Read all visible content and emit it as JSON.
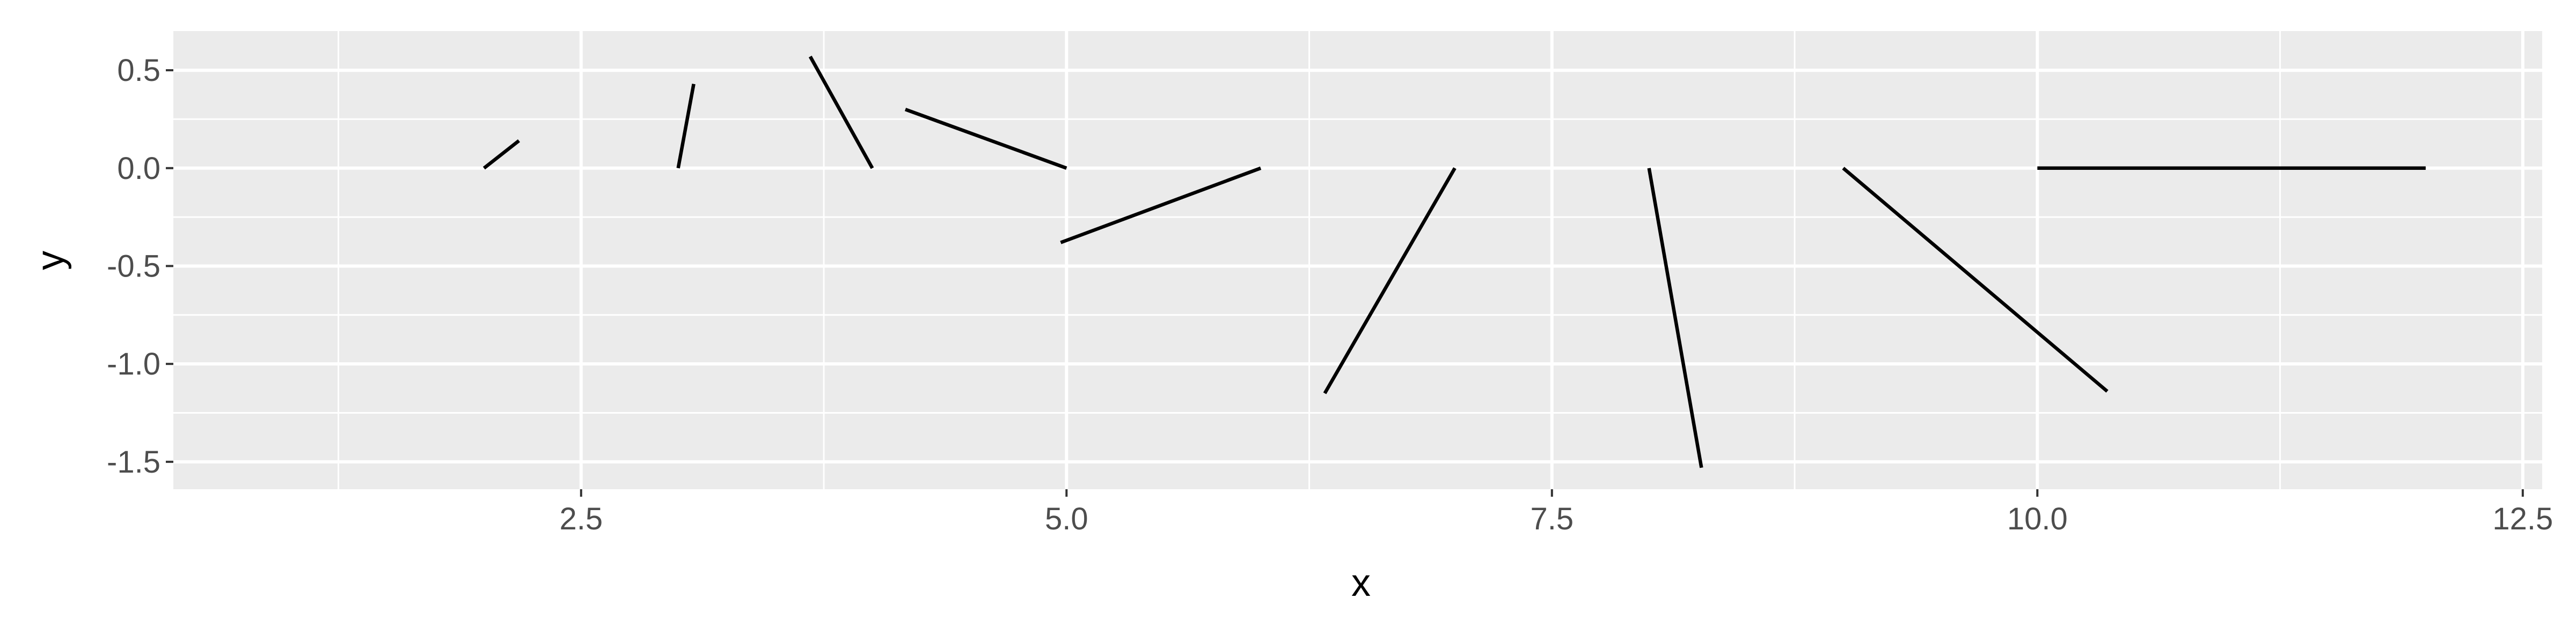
{
  "chart_data": {
    "type": "segment",
    "title": "",
    "xlabel": "x",
    "ylabel": "y",
    "xlim": [
      0.4,
      12.6
    ],
    "ylim": [
      -1.64,
      0.7
    ],
    "x_ticks": [
      2.5,
      5.0,
      7.5,
      10.0,
      12.5
    ],
    "x_tick_labels": [
      "2.5",
      "5.0",
      "7.5",
      "10.0",
      "12.5"
    ],
    "y_ticks": [
      0.5,
      0.0,
      -0.5,
      -1.0,
      -1.5
    ],
    "y_tick_labels": [
      "0.5",
      "0.0",
      "-0.5",
      "-1.0",
      "-1.5"
    ],
    "grid": true,
    "panel_color": "#ebebeb",
    "grid_color": "#ffffff",
    "segment_color": "#000000",
    "segments": [
      {
        "x": 2.0,
        "y": 0.0,
        "xend": 2.18,
        "yend": 0.14
      },
      {
        "x": 3.0,
        "y": 0.0,
        "xend": 3.08,
        "yend": 0.43
      },
      {
        "x": 4.0,
        "y": 0.0,
        "xend": 3.68,
        "yend": 0.57
      },
      {
        "x": 5.0,
        "y": 0.0,
        "xend": 4.17,
        "yend": 0.3
      },
      {
        "x": 6.0,
        "y": 0.0,
        "xend": 4.97,
        "yend": -0.38
      },
      {
        "x": 7.0,
        "y": 0.0,
        "xend": 6.33,
        "yend": -1.15
      },
      {
        "x": 8.0,
        "y": 0.0,
        "xend": 8.27,
        "yend": -1.53
      },
      {
        "x": 9.0,
        "y": 0.0,
        "xend": 10.36,
        "yend": -1.14
      },
      {
        "x": 10.0,
        "y": 0.0,
        "xend": 12.0,
        "yend": 0.0
      }
    ]
  }
}
